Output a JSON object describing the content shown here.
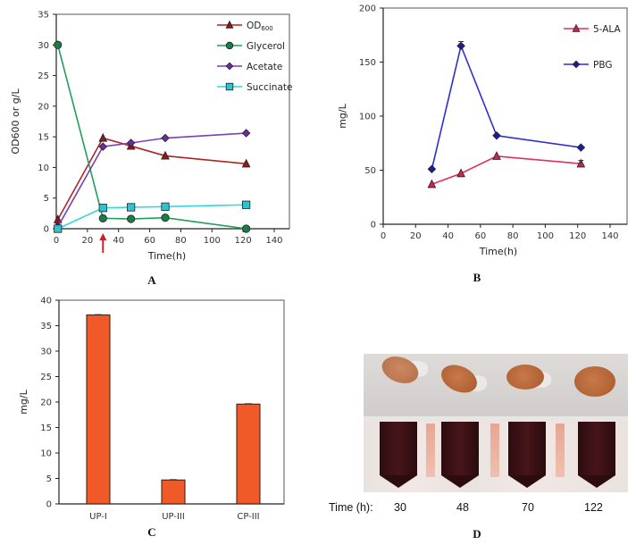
{
  "chart_data": [
    {
      "panel": "A",
      "type": "line",
      "title": "",
      "xlabel": "Time(h)",
      "ylabel": "OD600 or g/L",
      "xlim": [
        0,
        140
      ],
      "ylim": [
        0,
        35
      ],
      "xticks": [
        0,
        20,
        40,
        60,
        80,
        100,
        120,
        140
      ],
      "yticks": [
        0,
        5,
        10,
        15,
        20,
        25,
        30,
        35
      ],
      "grid": false,
      "legend_position": "top-right",
      "annotation": {
        "type": "arrow",
        "x": 30,
        "color": "#c0272d"
      },
      "series": [
        {
          "name": "OD600",
          "label_main": "OD",
          "label_sub": "600",
          "marker": "triangle",
          "color": "#b22222",
          "fill": "#8b1a1a",
          "x": [
            1,
            30,
            48,
            70,
            122
          ],
          "y": [
            1.5,
            14.8,
            13.5,
            11.9,
            10.6
          ]
        },
        {
          "name": "Glycerol",
          "marker": "circle",
          "color": "#1fa05a",
          "fill": "#1f7a4a",
          "x": [
            1,
            30,
            48,
            70,
            122
          ],
          "y": [
            30,
            1.7,
            1.6,
            1.8,
            0
          ]
        },
        {
          "name": "Acetate",
          "marker": "diamond",
          "color": "#7b3fb5",
          "fill": "#6a2c9e",
          "x": [
            1,
            30,
            48,
            70,
            122
          ],
          "y": [
            0.3,
            13.4,
            14.0,
            14.8,
            15.6
          ]
        },
        {
          "name": "Succinate",
          "marker": "square",
          "color": "#33d6e0",
          "fill": "#2ec4cf",
          "x": [
            1,
            30,
            48,
            70,
            122
          ],
          "y": [
            0,
            3.4,
            3.5,
            3.6,
            3.9
          ]
        }
      ]
    },
    {
      "panel": "B",
      "type": "line",
      "title": "",
      "xlabel": "Time(h)",
      "ylabel": "mg/L",
      "xlim": [
        0,
        140
      ],
      "ylim": [
        0,
        200
      ],
      "xticks": [
        0,
        20,
        40,
        60,
        80,
        100,
        120,
        140
      ],
      "yticks": [
        0,
        50,
        100,
        150,
        200
      ],
      "grid": false,
      "legend_position": "top-right",
      "series": [
        {
          "name": "5-ALA",
          "marker": "triangle",
          "color": "#e0305a",
          "fill": "#c8284a",
          "x": [
            30,
            48,
            70,
            122
          ],
          "y": [
            37,
            47,
            63,
            56
          ]
        },
        {
          "name": "PBG",
          "marker": "diamond",
          "color": "#2f2fd0",
          "fill": "#1c1ca0",
          "x": [
            30,
            48,
            70,
            122
          ],
          "y": [
            51,
            165,
            82,
            71
          ]
        }
      ]
    },
    {
      "panel": "C",
      "type": "bar",
      "title": "",
      "xlabel": "",
      "ylabel": "mg/L",
      "ylim": [
        0,
        40
      ],
      "yticks": [
        0,
        5,
        10,
        15,
        20,
        25,
        30,
        35,
        40
      ],
      "grid": false,
      "categories": [
        "UP-I",
        "UP-III",
        "CP-III"
      ],
      "values": [
        37.1,
        4.7,
        19.6
      ],
      "bar_color": "#f05a28"
    }
  ],
  "panel_labels": {
    "a": "A",
    "b": "B",
    "c": "C",
    "d": "D"
  },
  "photo": {
    "time_label": "Time (h):",
    "times": [
      "30",
      "48",
      "70",
      "122"
    ]
  }
}
